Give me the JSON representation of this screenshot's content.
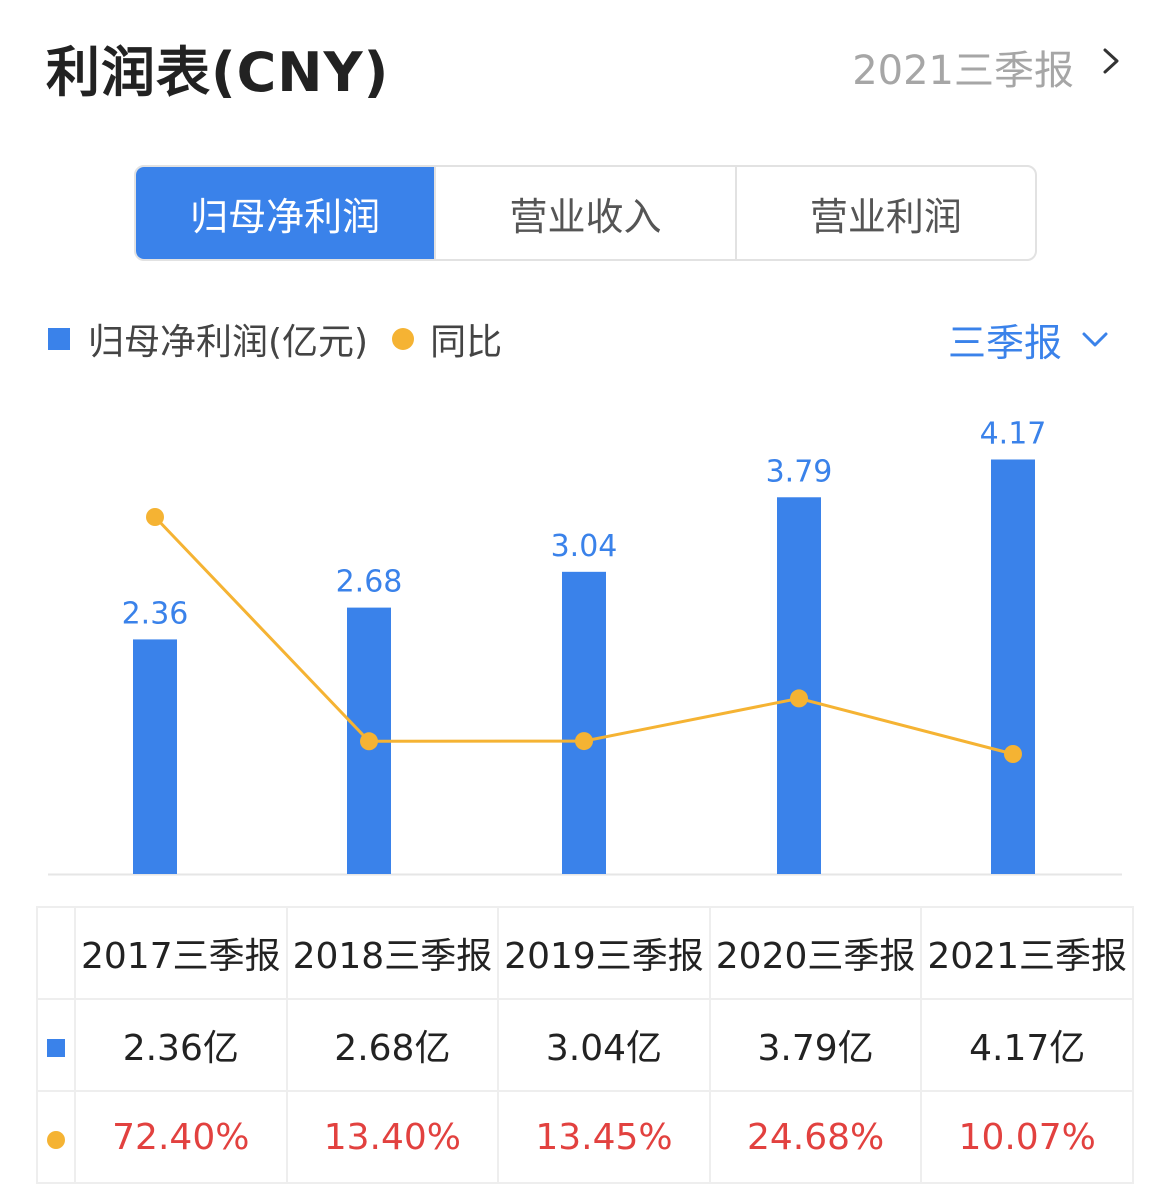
{
  "header": {
    "title": "利润表(CNY)",
    "period_link": "2021三季报"
  },
  "tabs": [
    {
      "label": "归母净利润",
      "active": true
    },
    {
      "label": "营业收入",
      "active": false
    },
    {
      "label": "营业利润",
      "active": false
    }
  ],
  "legend": {
    "bar_label": "归母净利润(亿元)",
    "line_label": "同比"
  },
  "period_select": {
    "label": "三季报"
  },
  "colors": {
    "bar": "#3a82ea",
    "line": "#f5b333",
    "negative_growth_text": "#e2413f"
  },
  "icons": [
    "chevron-right-icon",
    "chevron-down-icon"
  ],
  "chart_data": {
    "type": "bar",
    "categories": [
      "2017三季报",
      "2018三季报",
      "2019三季报",
      "2020三季报",
      "2021三季报"
    ],
    "series": [
      {
        "name": "归母净利润(亿元)",
        "type": "bar",
        "values": [
          2.36,
          2.68,
          3.04,
          3.79,
          4.17
        ],
        "labels": [
          "2.36",
          "2.68",
          "3.04",
          "3.79",
          "4.17"
        ]
      },
      {
        "name": "同比",
        "type": "line",
        "values": [
          72.4,
          13.4,
          13.45,
          24.68,
          10.07
        ]
      }
    ]
  },
  "table": {
    "headers": [
      "2017三季报",
      "2018三季报",
      "2019三季报",
      "2020三季报",
      "2021三季报"
    ],
    "net_profit": [
      "2.36亿",
      "2.68亿",
      "3.04亿",
      "3.79亿",
      "4.17亿"
    ],
    "yoy": [
      "72.40%",
      "13.40%",
      "13.45%",
      "24.68%",
      "10.07%"
    ]
  }
}
